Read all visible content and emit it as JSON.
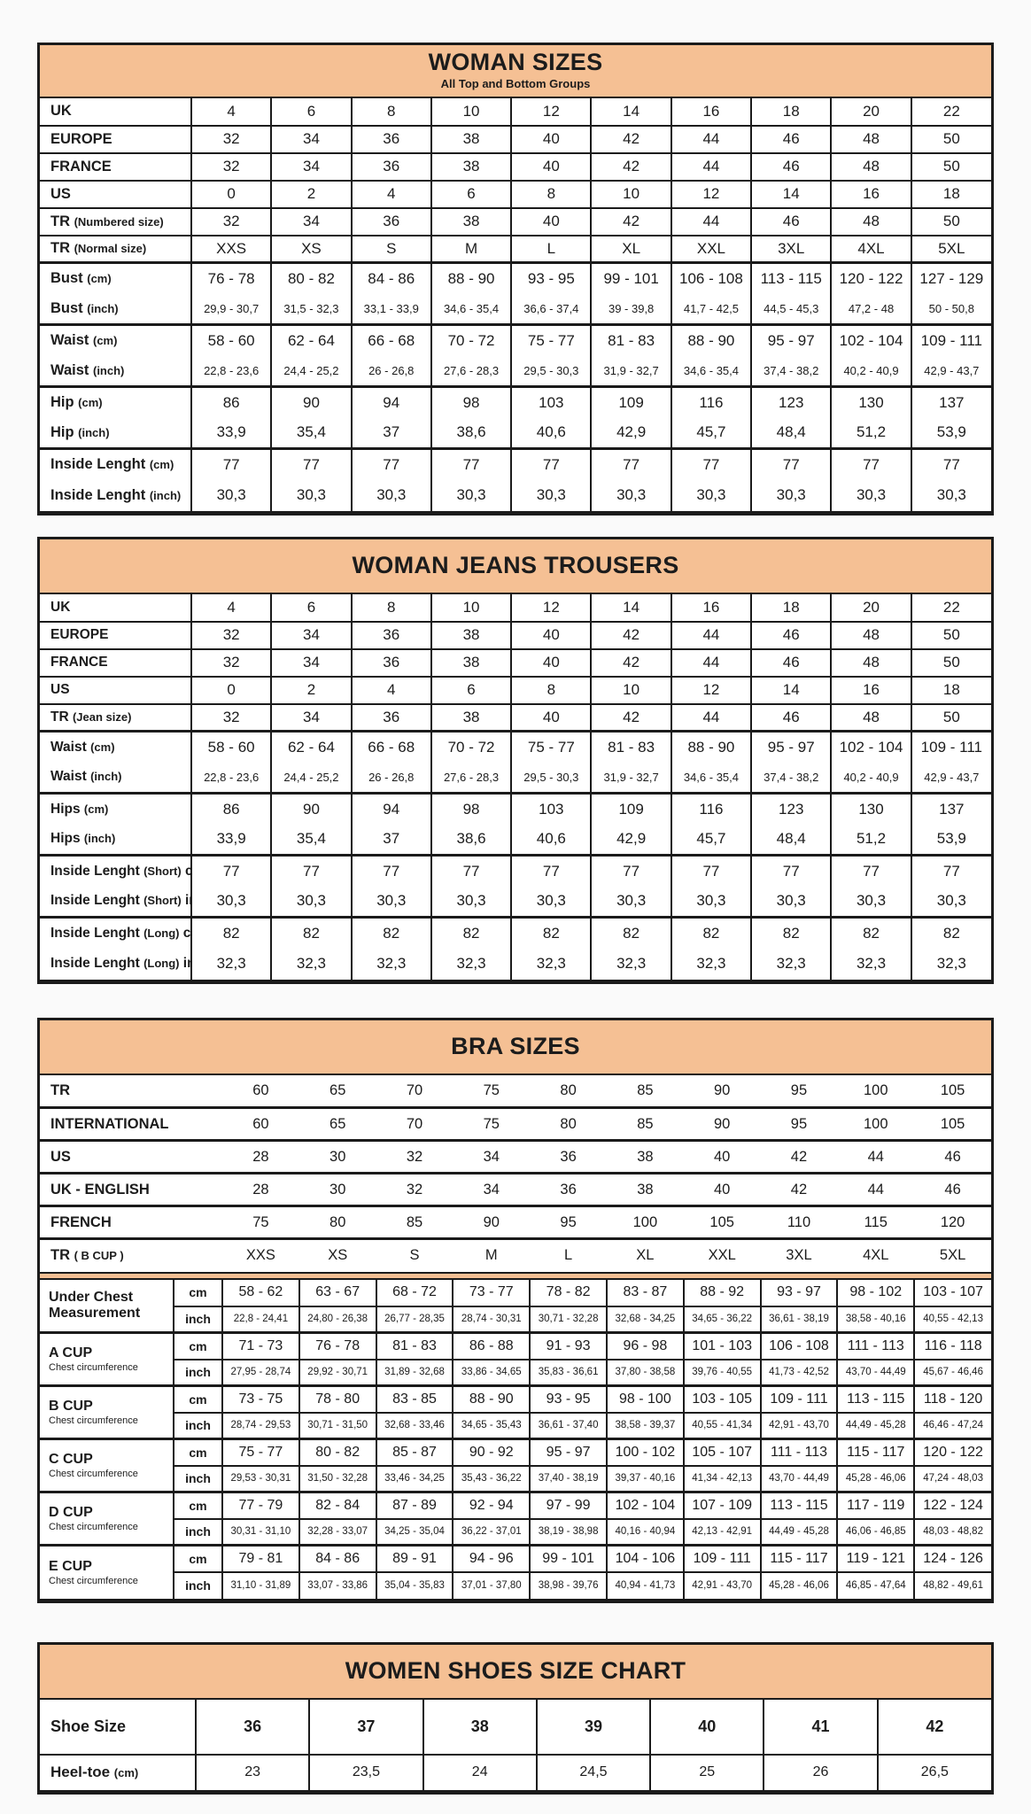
{
  "theme": {
    "accent": "#F5C094",
    "border": "#1B1B1B",
    "page_bg": "#FAFAFA",
    "cell_bg": "#FFFFFF"
  },
  "woman_sizes": {
    "title": "WOMAN SIZES",
    "subtitle": "All Top and Bottom Groups",
    "groups": [
      [
        {
          "label": "UK",
          "values": [
            "4",
            "6",
            "8",
            "10",
            "12",
            "14",
            "16",
            "18",
            "20",
            "22"
          ]
        }
      ],
      [
        {
          "label": "EUROPE",
          "values": [
            "32",
            "34",
            "36",
            "38",
            "40",
            "42",
            "44",
            "46",
            "48",
            "50"
          ]
        }
      ],
      [
        {
          "label": "FRANCE",
          "values": [
            "32",
            "34",
            "36",
            "38",
            "40",
            "42",
            "44",
            "46",
            "48",
            "50"
          ]
        }
      ],
      [
        {
          "label": "US",
          "values": [
            "0",
            "2",
            "4",
            "6",
            "8",
            "10",
            "12",
            "14",
            "16",
            "18"
          ]
        }
      ],
      [
        {
          "label": "TR (Numbered size)",
          "values": [
            "32",
            "34",
            "36",
            "38",
            "40",
            "42",
            "44",
            "46",
            "48",
            "50"
          ]
        }
      ],
      [
        {
          "label": "TR (Normal size)",
          "values": [
            "XXS",
            "XS",
            "S",
            "M",
            "L",
            "XL",
            "XXL",
            "3XL",
            "4XL",
            "5XL"
          ]
        }
      ],
      [
        {
          "label": "Bust (cm)",
          "values": [
            "76 - 78",
            "80 - 82",
            "84 - 86",
            "88 - 90",
            "93 - 95",
            "99 - 101",
            "106 - 108",
            "113 - 115",
            "120 - 122",
            "127 - 129"
          ]
        },
        {
          "label": "Bust (inch)",
          "small": true,
          "values": [
            "29,9 - 30,7",
            "31,5 - 32,3",
            "33,1 - 33,9",
            "34,6 - 35,4",
            "36,6 - 37,4",
            "39 - 39,8",
            "41,7 - 42,5",
            "44,5 - 45,3",
            "47,2 - 48",
            "50 - 50,8"
          ]
        }
      ],
      [
        {
          "label": "Waist (cm)",
          "values": [
            "58 - 60",
            "62 - 64",
            "66 - 68",
            "70 - 72",
            "75 - 77",
            "81 - 83",
            "88 - 90",
            "95 - 97",
            "102 - 104",
            "109 - 111"
          ]
        },
        {
          "label": "Waist (inch)",
          "small": true,
          "values": [
            "22,8 - 23,6",
            "24,4 - 25,2",
            "26 - 26,8",
            "27,6 - 28,3",
            "29,5 - 30,3",
            "31,9 - 32,7",
            "34,6 - 35,4",
            "37,4 - 38,2",
            "40,2 - 40,9",
            "42,9 - 43,7"
          ]
        }
      ],
      [
        {
          "label": "Hip (cm)",
          "values": [
            "86",
            "90",
            "94",
            "98",
            "103",
            "109",
            "116",
            "123",
            "130",
            "137"
          ]
        },
        {
          "label": "Hip (inch)",
          "values": [
            "33,9",
            "35,4",
            "37",
            "38,6",
            "40,6",
            "42,9",
            "45,7",
            "48,4",
            "51,2",
            "53,9"
          ]
        }
      ],
      [
        {
          "label": "Inside Lenght (cm)",
          "values": [
            "77",
            "77",
            "77",
            "77",
            "77",
            "77",
            "77",
            "77",
            "77",
            "77"
          ]
        },
        {
          "label": "Inside Lenght (inch)",
          "values": [
            "30,3",
            "30,3",
            "30,3",
            "30,3",
            "30,3",
            "30,3",
            "30,3",
            "30,3",
            "30,3",
            "30,3"
          ]
        }
      ]
    ]
  },
  "jeans": {
    "title": "WOMAN JEANS TROUSERS",
    "groups": [
      [
        {
          "label": "UK",
          "values": [
            "4",
            "6",
            "8",
            "10",
            "12",
            "14",
            "16",
            "18",
            "20",
            "22"
          ]
        }
      ],
      [
        {
          "label": "EUROPE",
          "values": [
            "32",
            "34",
            "36",
            "38",
            "40",
            "42",
            "44",
            "46",
            "48",
            "50"
          ]
        }
      ],
      [
        {
          "label": "FRANCE",
          "values": [
            "32",
            "34",
            "36",
            "38",
            "40",
            "42",
            "44",
            "46",
            "48",
            "50"
          ]
        }
      ],
      [
        {
          "label": "US",
          "values": [
            "0",
            "2",
            "4",
            "6",
            "8",
            "10",
            "12",
            "14",
            "16",
            "18"
          ]
        }
      ],
      [
        {
          "label": "TR (Jean size)",
          "values": [
            "32",
            "34",
            "36",
            "38",
            "40",
            "42",
            "44",
            "46",
            "48",
            "50"
          ]
        }
      ],
      [
        {
          "label": "Waist (cm)",
          "values": [
            "58 - 60",
            "62 - 64",
            "66 - 68",
            "70 - 72",
            "75 - 77",
            "81 - 83",
            "88 - 90",
            "95 - 97",
            "102 - 104",
            "109 - 111"
          ]
        },
        {
          "label": "Waist (inch)",
          "small": true,
          "values": [
            "22,8 - 23,6",
            "24,4 - 25,2",
            "26 - 26,8",
            "27,6 - 28,3",
            "29,5 - 30,3",
            "31,9 - 32,7",
            "34,6 - 35,4",
            "37,4 - 38,2",
            "40,2 - 40,9",
            "42,9 - 43,7"
          ]
        }
      ],
      [
        {
          "label": "Hips (cm)",
          "values": [
            "86",
            "90",
            "94",
            "98",
            "103",
            "109",
            "116",
            "123",
            "130",
            "137"
          ]
        },
        {
          "label": "Hips (inch)",
          "values": [
            "33,9",
            "35,4",
            "37",
            "38,6",
            "40,6",
            "42,9",
            "45,7",
            "48,4",
            "51,2",
            "53,9"
          ]
        }
      ],
      [
        {
          "label": "Inside Lenght (Short) cm",
          "values": [
            "77",
            "77",
            "77",
            "77",
            "77",
            "77",
            "77",
            "77",
            "77",
            "77"
          ]
        },
        {
          "label": "Inside Lenght (Short) inch",
          "values": [
            "30,3",
            "30,3",
            "30,3",
            "30,3",
            "30,3",
            "30,3",
            "30,3",
            "30,3",
            "30,3",
            "30,3"
          ]
        }
      ],
      [
        {
          "label": "Inside Lenght (Long) cm",
          "values": [
            "82",
            "82",
            "82",
            "82",
            "82",
            "82",
            "82",
            "82",
            "82",
            "82"
          ]
        },
        {
          "label": "Inside Lenght (Long) inch",
          "values": [
            "32,3",
            "32,3",
            "32,3",
            "32,3",
            "32,3",
            "32,3",
            "32,3",
            "32,3",
            "32,3",
            "32,3"
          ]
        }
      ]
    ]
  },
  "bra": {
    "title": "BRA SIZES",
    "unit_cm": "cm",
    "unit_inch": "inch",
    "top": {
      "groups": [
        [
          {
            "label": "TR",
            "values": [
              "60",
              "65",
              "70",
              "75",
              "80",
              "85",
              "90",
              "95",
              "100",
              "105"
            ]
          }
        ],
        [
          {
            "label": "INTERNATIONAL",
            "values": [
              "60",
              "65",
              "70",
              "75",
              "80",
              "85",
              "90",
              "95",
              "100",
              "105"
            ]
          }
        ],
        [
          {
            "label": "US",
            "values": [
              "28",
              "30",
              "32",
              "34",
              "36",
              "38",
              "40",
              "42",
              "44",
              "46"
            ]
          }
        ],
        [
          {
            "label": "UK - ENGLISH",
            "values": [
              "28",
              "30",
              "32",
              "34",
              "36",
              "38",
              "40",
              "42",
              "44",
              "46"
            ]
          }
        ],
        [
          {
            "label": "FRENCH",
            "values": [
              "75",
              "80",
              "85",
              "90",
              "95",
              "100",
              "105",
              "110",
              "115",
              "120"
            ]
          }
        ],
        [
          {
            "label": "TR ( B CUP )",
            "values": [
              "XXS",
              "XS",
              "S",
              "M",
              "L",
              "XL",
              "XXL",
              "3XL",
              "4XL",
              "5XL"
            ]
          }
        ]
      ]
    },
    "cups": [
      {
        "name": "Under Chest Measurement",
        "sub": "",
        "cm": [
          "58 - 62",
          "63 - 67",
          "68 - 72",
          "73 - 77",
          "78 - 82",
          "83 - 87",
          "88 - 92",
          "93 - 97",
          "98 - 102",
          "103 - 107"
        ],
        "inch": [
          "22,8 - 24,41",
          "24,80 - 26,38",
          "26,77 - 28,35",
          "28,74 - 30,31",
          "30,71 - 32,28",
          "32,68 - 34,25",
          "34,65 - 36,22",
          "36,61 - 38,19",
          "38,58 - 40,16",
          "40,55 - 42,13"
        ]
      },
      {
        "name": "A CUP",
        "sub": "Chest circumference",
        "cm": [
          "71 - 73",
          "76 - 78",
          "81 - 83",
          "86 - 88",
          "91 - 93",
          "96 - 98",
          "101 - 103",
          "106 - 108",
          "111 - 113",
          "116 - 118"
        ],
        "inch": [
          "27,95 - 28,74",
          "29,92 - 30,71",
          "31,89 - 32,68",
          "33,86 - 34,65",
          "35,83 - 36,61",
          "37,80 - 38,58",
          "39,76 - 40,55",
          "41,73 - 42,52",
          "43,70 - 44,49",
          "45,67 - 46,46"
        ]
      },
      {
        "name": "B CUP",
        "sub": "Chest circumference",
        "cm": [
          "73 - 75",
          "78 - 80",
          "83 - 85",
          "88 - 90",
          "93 - 95",
          "98 - 100",
          "103 - 105",
          "109 - 111",
          "113 - 115",
          "118 - 120"
        ],
        "inch": [
          "28,74 - 29,53",
          "30,71 - 31,50",
          "32,68 - 33,46",
          "34,65 - 35,43",
          "36,61 - 37,40",
          "38,58 - 39,37",
          "40,55 - 41,34",
          "42,91 - 43,70",
          "44,49 - 45,28",
          "46,46 - 47,24"
        ]
      },
      {
        "name": "C CUP",
        "sub": "Chest circumference",
        "cm": [
          "75 - 77",
          "80 - 82",
          "85 - 87",
          "90 - 92",
          "95 - 97",
          "100 - 102",
          "105 - 107",
          "111 - 113",
          "115 - 117",
          "120 - 122"
        ],
        "inch": [
          "29,53 - 30,31",
          "31,50 - 32,28",
          "33,46 - 34,25",
          "35,43 - 36,22",
          "37,40 - 38,19",
          "39,37 - 40,16",
          "41,34 - 42,13",
          "43,70 - 44,49",
          "45,28 - 46,06",
          "47,24 - 48,03"
        ]
      },
      {
        "name": "D CUP",
        "sub": "Chest circumference",
        "cm": [
          "77 - 79",
          "82 - 84",
          "87 - 89",
          "92 - 94",
          "97 - 99",
          "102 - 104",
          "107 - 109",
          "113 - 115",
          "117 - 119",
          "122 - 124"
        ],
        "inch": [
          "30,31 - 31,10",
          "32,28 - 33,07",
          "34,25 - 35,04",
          "36,22 - 37,01",
          "38,19 - 38,98",
          "40,16 - 40,94",
          "42,13 - 42,91",
          "44,49 - 45,28",
          "46,06 - 46,85",
          "48,03 - 48,82"
        ]
      },
      {
        "name": "E CUP",
        "sub": "Chest circumference",
        "cm": [
          "79 - 81",
          "84 - 86",
          "89 - 91",
          "94 - 96",
          "99 - 101",
          "104 - 106",
          "109 - 111",
          "115 - 117",
          "119 - 121",
          "124 - 126"
        ],
        "inch": [
          "31,10 - 31,89",
          "33,07 - 33,86",
          "35,04 - 35,83",
          "37,01 - 37,80",
          "38,98 - 39,76",
          "40,94 - 41,73",
          "42,91 - 43,70",
          "45,28 - 46,06",
          "46,85 - 47,64",
          "48,82 - 49,61"
        ]
      }
    ]
  },
  "shoes": {
    "title": "WOMEN SHOES SIZE CHART",
    "groups": [
      [
        {
          "label": "Shoe Size",
          "tall": true,
          "bold": true,
          "values": [
            "36",
            "37",
            "38",
            "39",
            "40",
            "41",
            "42"
          ]
        }
      ],
      [
        {
          "label": "Heel-toe (cm)",
          "values": [
            "23",
            "23,5",
            "24",
            "24,5",
            "25",
            "26",
            "26,5"
          ]
        }
      ]
    ]
  }
}
